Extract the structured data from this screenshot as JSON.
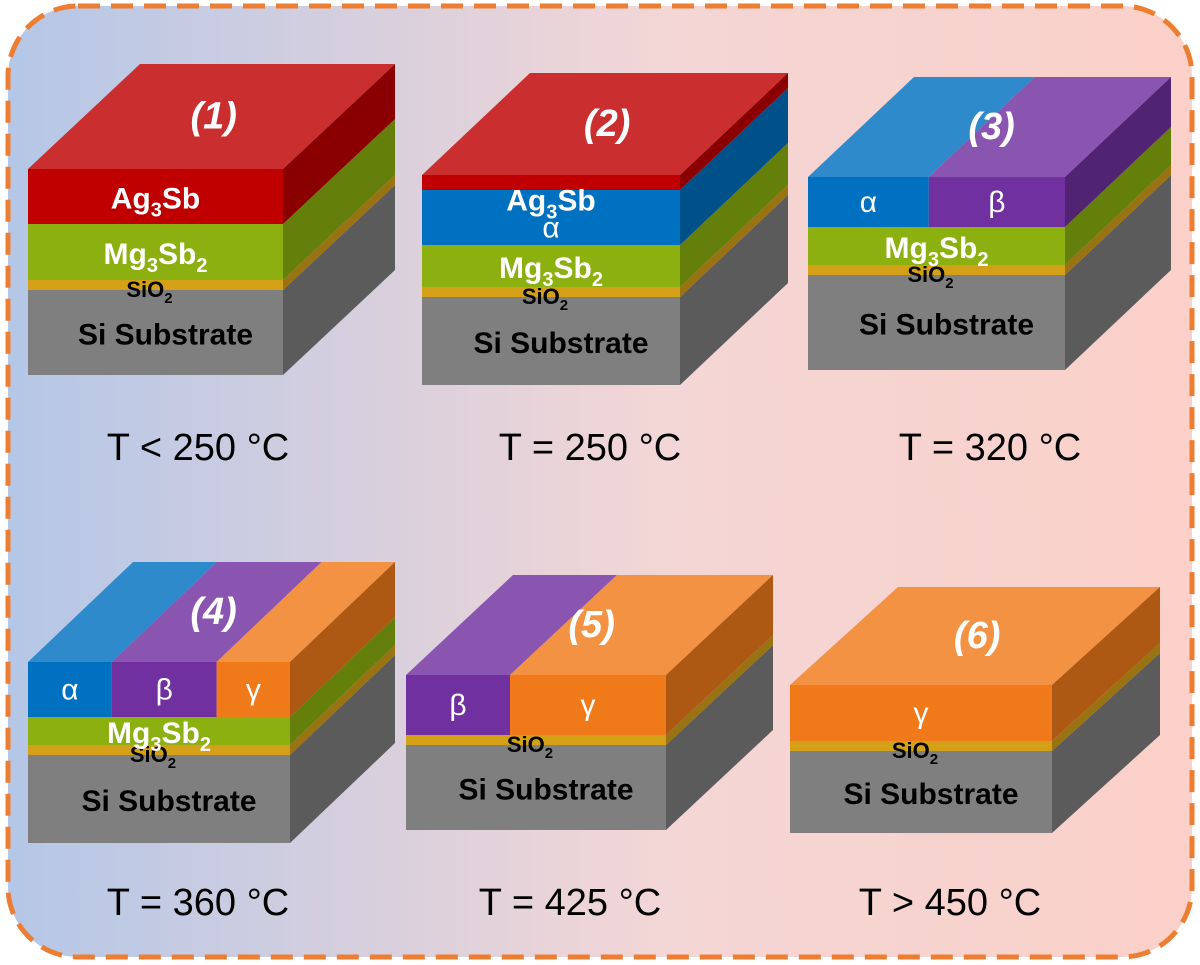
{
  "colors": {
    "bg_left": "#b4c7e7",
    "bg_right": "#fbd0c8",
    "border": "#ed7d31",
    "substrate": "#7f7f7f",
    "sio2": "#d4a017",
    "mg3sb2": "#8cb00f",
    "ag3sb": "#c00000",
    "alpha": "#0070c0",
    "beta": "#7030a0",
    "gamma": "#f07a1a"
  },
  "labels": {
    "ag3sb": {
      "main": "Ag",
      "sub": "3",
      "rest": "Sb"
    },
    "mg3sb2": {
      "a": "Mg",
      "b": "3",
      "c": "Sb",
      "d": "2"
    },
    "sio2": {
      "main": "SiO",
      "sub": "2"
    },
    "substrate": "Si Substrate",
    "alpha": "α",
    "beta": "β",
    "gamma": "γ"
  },
  "panels": [
    {
      "number": "(1)",
      "temperature": "T < 250 °C",
      "layers": [
        "Si Substrate",
        "SiO2",
        "Mg3Sb2",
        "Ag3Sb"
      ]
    },
    {
      "number": "(2)",
      "temperature": "T = 250 °C",
      "layers": [
        "Si Substrate",
        "SiO2",
        "Mg3Sb2",
        "α",
        "Ag3Sb"
      ]
    },
    {
      "number": "(3)",
      "temperature": "T = 320 °C",
      "layers": [
        "Si Substrate",
        "SiO2",
        "Mg3Sb2",
        "α",
        "β"
      ]
    },
    {
      "number": "(4)",
      "temperature": "T = 360 °C",
      "layers": [
        "Si Substrate",
        "SiO2",
        "Mg3Sb2",
        "α",
        "β",
        "γ"
      ]
    },
    {
      "number": "(5)",
      "temperature": "T = 425 °C",
      "layers": [
        "Si Substrate",
        "SiO2",
        "β",
        "γ"
      ]
    },
    {
      "number": "(6)",
      "temperature": "T > 450 °C",
      "layers": [
        "Si Substrate",
        "SiO2",
        "γ"
      ]
    }
  ]
}
